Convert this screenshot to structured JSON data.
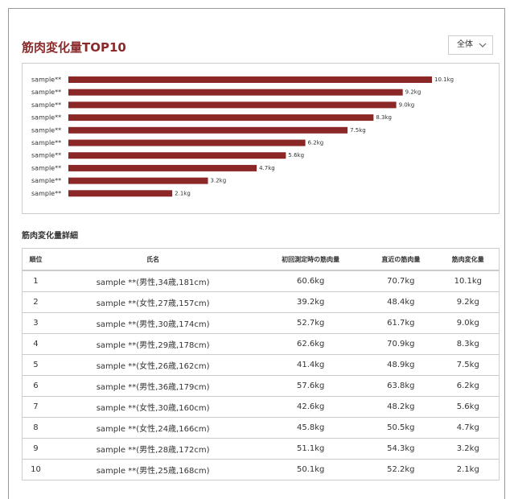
{
  "header": {
    "title": "筋肉変化量TOP10",
    "dropdown": "全体"
  },
  "chart_data": {
    "type": "bar",
    "orientation": "horizontal",
    "color": "#8b2727",
    "categories": [
      "sample**",
      "sample**",
      "sample**",
      "sample**",
      "sample**",
      "sample**",
      "sample**",
      "sample**",
      "sample**",
      "sample**"
    ],
    "values": [
      10.1,
      9.2,
      9.0,
      8.3,
      7.5,
      6.2,
      5.6,
      4.7,
      3.2,
      2.1
    ],
    "value_labels": [
      "10.1kg",
      "9.2kg",
      "9.0kg",
      "8.3kg",
      "7.5kg",
      "6.2kg",
      "5.6kg",
      "4.7kg",
      "3.2kg",
      "2.1kg"
    ],
    "xlim": [
      -1.1,
      10.1
    ]
  },
  "section_title": "筋肉変化量詳細",
  "table": {
    "columns": [
      "順位",
      "氏名",
      "初回測定時の筋肉量",
      "直近の筋肉量",
      "筋肉変化量"
    ],
    "rows": [
      [
        "1",
        "sample **(男性,34歳,181cm)",
        "60.6kg",
        "70.7kg",
        "10.1kg"
      ],
      [
        "2",
        "sample **(女性,27歳,157cm)",
        "39.2kg",
        "48.4kg",
        "9.2kg"
      ],
      [
        "3",
        "sample **(男性,30歳,174cm)",
        "52.7kg",
        "61.7kg",
        "9.0kg"
      ],
      [
        "4",
        "sample **(男性,29歳,178cm)",
        "62.6kg",
        "70.9kg",
        "8.3kg"
      ],
      [
        "5",
        "sample **(女性,26歳,162cm)",
        "41.4kg",
        "48.9kg",
        "7.5kg"
      ],
      [
        "6",
        "sample **(男性,36歳,179cm)",
        "57.6kg",
        "63.8kg",
        "6.2kg"
      ],
      [
        "7",
        "sample **(女性,30歳,160cm)",
        "42.6kg",
        "48.2kg",
        "5.6kg"
      ],
      [
        "8",
        "sample **(女性,24歳,166cm)",
        "45.8kg",
        "50.5kg",
        "4.7kg"
      ],
      [
        "9",
        "sample **(男性,28歳,172cm)",
        "51.1kg",
        "54.3kg",
        "3.2kg"
      ],
      [
        "10",
        "sample **(男性,25歳,168cm)",
        "50.1kg",
        "52.2kg",
        "2.1kg"
      ]
    ]
  }
}
